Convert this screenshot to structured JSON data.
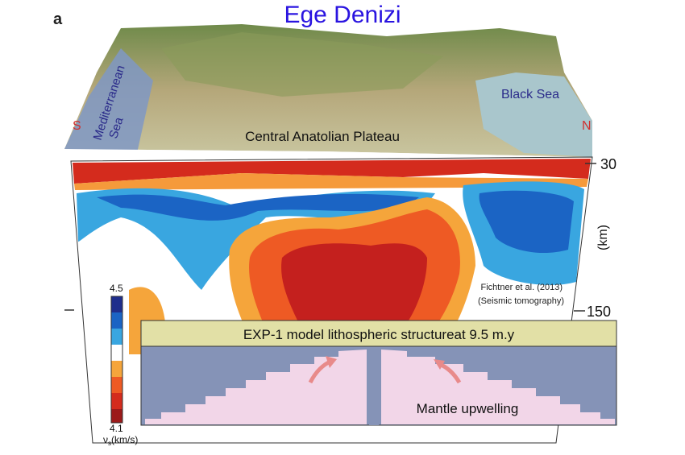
{
  "panel_label": "a",
  "title": "Ege Denizi",
  "terrain": {
    "south": "S",
    "north": "N",
    "mediterranean": [
      "Mediterranean",
      "Sea"
    ],
    "black_sea": "Black Sea",
    "plateau": "Central Anatolian Plateau"
  },
  "tomography": {
    "depth_ticks": [
      "30",
      "150"
    ],
    "depth_unit": "(km)",
    "citation": [
      "Fichtner et al. (2013)",
      "(Seismic tomography)"
    ],
    "colorbar": {
      "max": "4.5",
      "min": "4.1",
      "symbol": "ν",
      "subscript": "s",
      "unit": "(km/s)"
    }
  },
  "inset": {
    "title": "EXP-1 model lithospheric structureat 9.5 m.y",
    "label": "Mantle upwelling"
  }
}
